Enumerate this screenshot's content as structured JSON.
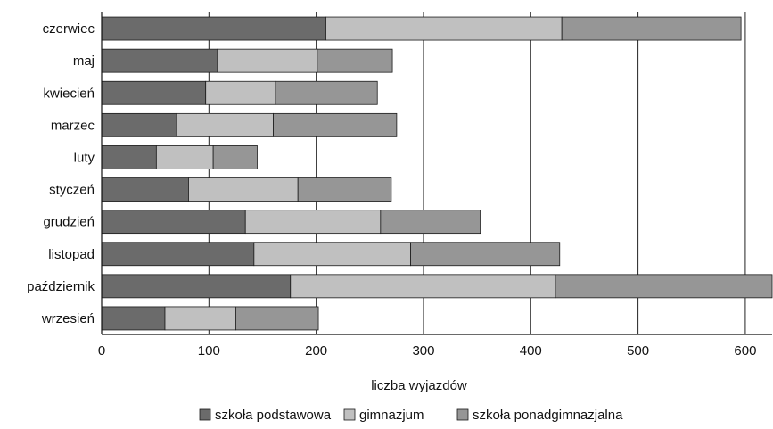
{
  "chart_data": {
    "type": "bar",
    "orientation": "horizontal",
    "stacked": true,
    "title": "",
    "xlabel": "liczba wyjazdów",
    "ylabel": "",
    "xlim": [
      0,
      625
    ],
    "x_ticks": [
      0,
      100,
      200,
      300,
      400,
      500,
      600
    ],
    "grid": "vertical",
    "legend_position": "bottom",
    "categories": [
      "czerwiec",
      "maj",
      "kwiecień",
      "marzec",
      "luty",
      "styczeń",
      "grudzień",
      "listopad",
      "październik",
      "wrzesień"
    ],
    "series": [
      {
        "name": "szkoła podstawowa",
        "color": "#6b6b6b",
        "values": [
          209,
          108,
          97,
          70,
          51,
          81,
          134,
          142,
          176,
          59
        ]
      },
      {
        "name": "gimnazjum",
        "color": "#c0c0c0",
        "values": [
          220,
          93,
          65,
          90,
          53,
          102,
          126,
          146,
          247,
          66
        ]
      },
      {
        "name": "szkoła ponadgimnazjalna",
        "color": "#969696",
        "values": [
          167,
          70,
          95,
          115,
          41,
          87,
          93,
          139,
          205,
          77
        ]
      }
    ]
  }
}
